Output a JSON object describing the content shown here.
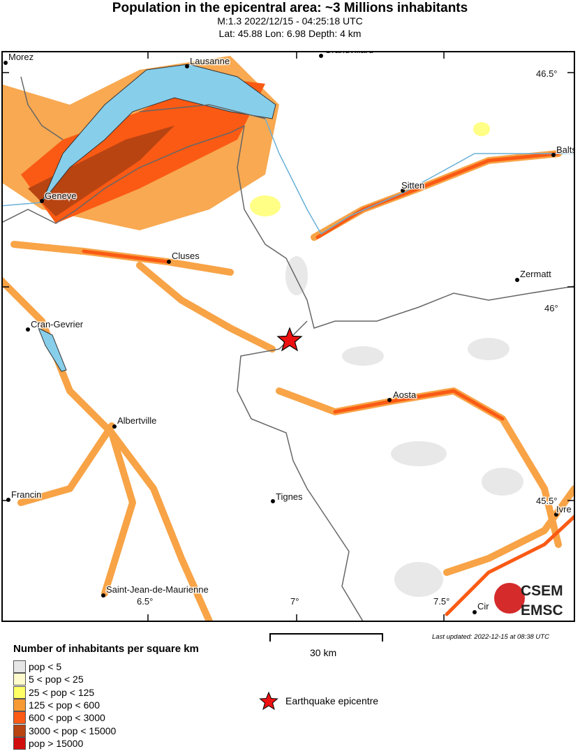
{
  "header": {
    "title": "Population in the epicentral area: ~3 Millions inhabitants",
    "subtitle1": "M:1.3 2022/12/15 - 04:25:18 UTC",
    "subtitle2": "Lat: 45.88 Lon: 6.98 Depth: 4 km"
  },
  "map": {
    "lon_ticks": [
      "6.5°",
      "7°",
      "7.5°"
    ],
    "lat_ticks": [
      "46.5°",
      "46°",
      "45.5°"
    ],
    "cities": [
      "Morez",
      "Lausanne",
      "Grandvillard",
      "Balts",
      "Geneve",
      "Sitten",
      "Cluses",
      "Zermatt",
      "Cran-Gevrier",
      "Aosta",
      "Albertville",
      "Francin",
      "Tignes",
      "Ivre",
      "Saint-Jean-de-Maurienne",
      "Cir"
    ],
    "epicentre": {
      "lat": 45.88,
      "lon": 6.98,
      "icon": "red-star-icon",
      "color": "#ee1111"
    },
    "logo": {
      "line1": "CSEM",
      "line2": "EMSC"
    },
    "lake_color": "#87ceeb"
  },
  "legend": {
    "title": "Number of inhabitants per square km",
    "items": [
      {
        "label": "pop < 5",
        "color": "#e6e6e6"
      },
      {
        "label": "5 < pop < 25",
        "color": "#fffacd"
      },
      {
        "label": "25 < pop < 125",
        "color": "#ffff66"
      },
      {
        "label": "125 < pop < 600",
        "color": "#f79a33"
      },
      {
        "label": "600 < pop < 3000",
        "color": "#fa5a14"
      },
      {
        "label": "3000 < pop < 15000",
        "color": "#b84412"
      },
      {
        "label": "pop > 15000",
        "color": "#d10e0e"
      }
    ],
    "epicentre_label": "Earthquake epicentre"
  },
  "scale": {
    "label": "30 km"
  },
  "footer": {
    "updated": "Last updated: 2022-12-15 at 08:38 UTC"
  }
}
